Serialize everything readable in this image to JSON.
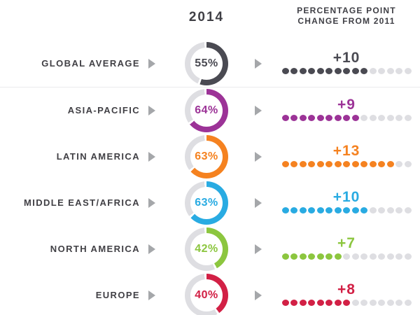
{
  "chart_data": {
    "type": "donut",
    "title": "2014",
    "change_header_line1": "PERCENTAGE POINT",
    "change_header_line2": "CHANGE FROM 2011",
    "dots_total": 15,
    "legend_position": "none",
    "categories": [
      "GLOBAL AVERAGE",
      "ASIA-PACIFIC",
      "LATIN AMERICA",
      "MIDDLE EAST/AFRICA",
      "NORTH AMERICA",
      "EUROPE"
    ],
    "series": [
      {
        "name": "2014 (%)",
        "values": [
          55,
          64,
          63,
          63,
          42,
          40
        ]
      },
      {
        "name": "Percentage point change from 2011",
        "values": [
          10,
          9,
          13,
          10,
          7,
          8
        ]
      }
    ],
    "rows": [
      {
        "label": "GLOBAL AVERAGE",
        "pct": 55,
        "pct_display": "55%",
        "change": 10,
        "change_display": "+10",
        "color": "#4a4a52"
      },
      {
        "label": "ASIA-PACIFIC",
        "pct": 64,
        "pct_display": "64%",
        "change": 9,
        "change_display": "+9",
        "color": "#9c3397"
      },
      {
        "label": "LATIN AMERICA",
        "pct": 63,
        "pct_display": "63%",
        "change": 13,
        "change_display": "+13",
        "color": "#f58220"
      },
      {
        "label": "MIDDLE EAST/AFRICA",
        "pct": 63,
        "pct_display": "63%",
        "change": 10,
        "change_display": "+10",
        "color": "#29abe2"
      },
      {
        "label": "NORTH AMERICA",
        "pct": 42,
        "pct_display": "42%",
        "change": 7,
        "change_display": "+7",
        "color": "#8cc63f"
      },
      {
        "label": "EUROPE",
        "pct": 40,
        "pct_display": "40%",
        "change": 8,
        "change_display": "+8",
        "color": "#d22045"
      }
    ],
    "colors": {
      "track": "#dedee2",
      "inactive_dot": "#dedee2",
      "arrow": "#a5a7aa",
      "heading_text": "#3f3f45",
      "separator": "#ebebed"
    }
  }
}
